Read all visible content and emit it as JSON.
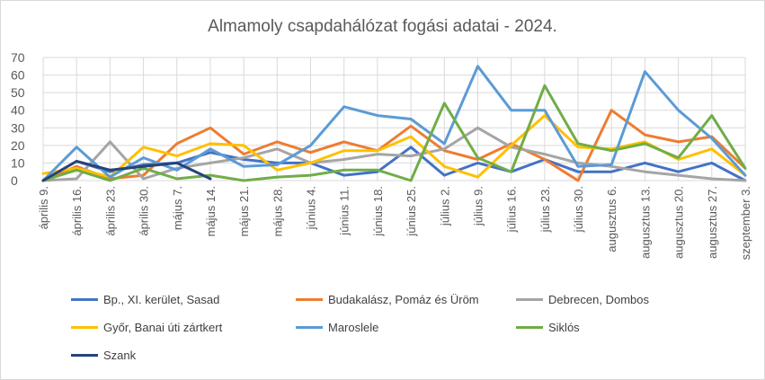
{
  "chart_data": {
    "type": "line",
    "title": "Almamoly csapdahálózat fogási adatai - 2024.",
    "xlabel": "",
    "ylabel": "",
    "ylim": [
      0,
      70
    ],
    "yticks": [
      0,
      10,
      20,
      30,
      40,
      50,
      60,
      70
    ],
    "grid": true,
    "legend_position": "bottom",
    "categories": [
      "április 9.",
      "április 16.",
      "április 23.",
      "április 30.",
      "május 7.",
      "május 14.",
      "május 21.",
      "május 28.",
      "június 4.",
      "június 11.",
      "június 18.",
      "június 25.",
      "július 2.",
      "július 9.",
      "július 16.",
      "július 23.",
      "július 30.",
      "augusztus 6.",
      "augusztus 13.",
      "augusztus 20.",
      "augusztus 27.",
      "szeptember 3."
    ],
    "series": [
      {
        "name": "Bp., XI. kerület, Sasad",
        "color": "#4472C4",
        "values": [
          0,
          11,
          5,
          9,
          10,
          16,
          12,
          10,
          10,
          3,
          5,
          19,
          3,
          10,
          5,
          12,
          5,
          5,
          10,
          5,
          10,
          0
        ]
      },
      {
        "name": "Budakalász, Pomáz és Üröm",
        "color": "#ED7D31",
        "values": [
          0,
          8,
          1,
          3,
          21,
          30,
          15,
          22,
          16,
          22,
          17,
          31,
          17,
          12,
          21,
          12,
          0,
          40,
          26,
          22,
          25,
          7
        ]
      },
      {
        "name": "Debrecen, Dombos",
        "color": "#A5A5A5",
        "values": [
          0,
          1,
          22,
          1,
          7,
          10,
          13,
          18,
          10,
          12,
          15,
          14,
          18,
          30,
          19,
          15,
          10,
          8,
          5,
          3,
          1,
          0
        ]
      },
      {
        "name": "Győr, Banai úti zártkert",
        "color": "#FFC000",
        "values": [
          4,
          7,
          2,
          19,
          14,
          21,
          20,
          6,
          10,
          17,
          17,
          25,
          8,
          2,
          20,
          37,
          19,
          18,
          22,
          12,
          18,
          3
        ]
      },
      {
        "name": "Maroslele",
        "color": "#5B9BD5",
        "values": [
          0,
          19,
          2,
          13,
          6,
          18,
          8,
          9,
          20,
          42,
          37,
          35,
          21,
          65,
          40,
          40,
          8,
          9,
          62,
          40,
          24,
          3
        ]
      },
      {
        "name": "Siklós",
        "color": "#70AD47",
        "values": [
          0,
          6,
          0,
          7,
          1,
          3,
          0,
          2,
          3,
          6,
          6,
          0,
          44,
          13,
          5,
          54,
          21,
          17,
          21,
          13,
          37,
          7
        ]
      },
      {
        "name": "Szank",
        "color": "#264478",
        "values": [
          0,
          11,
          6,
          8,
          10,
          1,
          null,
          null,
          null,
          null,
          null,
          null,
          null,
          null,
          null,
          null,
          null,
          null,
          null,
          null,
          null,
          null
        ]
      }
    ]
  }
}
